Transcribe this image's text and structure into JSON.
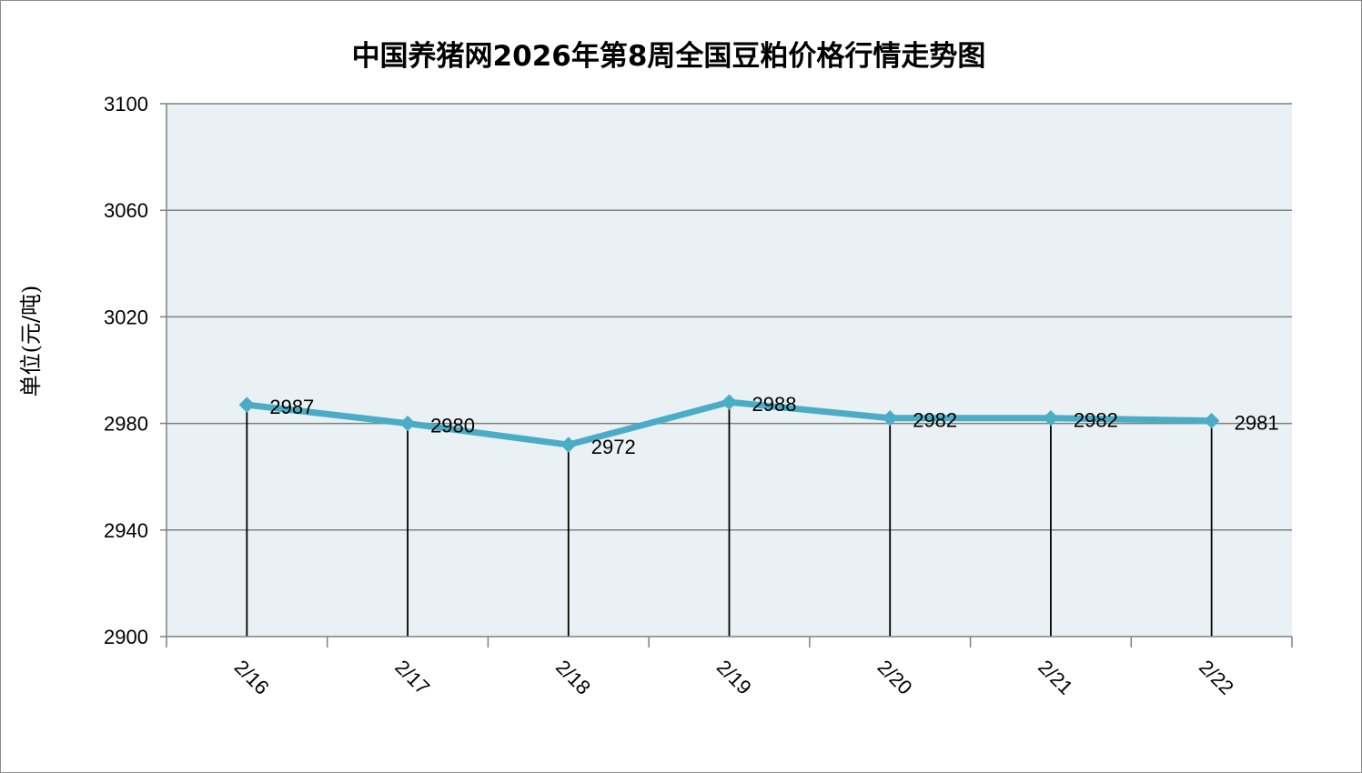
{
  "chart_data": {
    "type": "line",
    "title": "中国养猪网2026年第8周全国豆粕价格行情走势图",
    "xlabel": "",
    "ylabel": "单位(元/吨)",
    "categories": [
      "2/16",
      "2/17",
      "2/18",
      "2/19",
      "2/20",
      "2/21",
      "2/22"
    ],
    "series": [
      {
        "values": [
          2987,
          2980,
          2972,
          2988,
          2982,
          2982,
          2981
        ]
      }
    ],
    "data_labels": [
      "2987",
      "2980",
      "2972",
      "2988",
      "2982",
      "2982",
      "2981"
    ],
    "ylim": [
      2900,
      3100
    ],
    "yticks": [
      2900,
      2940,
      2980,
      3020,
      3060,
      3100
    ],
    "ytick_labels": [
      "2900",
      "2940",
      "2980",
      "3020",
      "3060",
      "3100"
    ],
    "grid": "horizontal",
    "drop_lines": true,
    "legend": "none",
    "colors": {
      "line": "#4BACC6",
      "plot_background": "#E9F1F4",
      "gridline": "#808080",
      "drop_line": "#000000"
    }
  }
}
